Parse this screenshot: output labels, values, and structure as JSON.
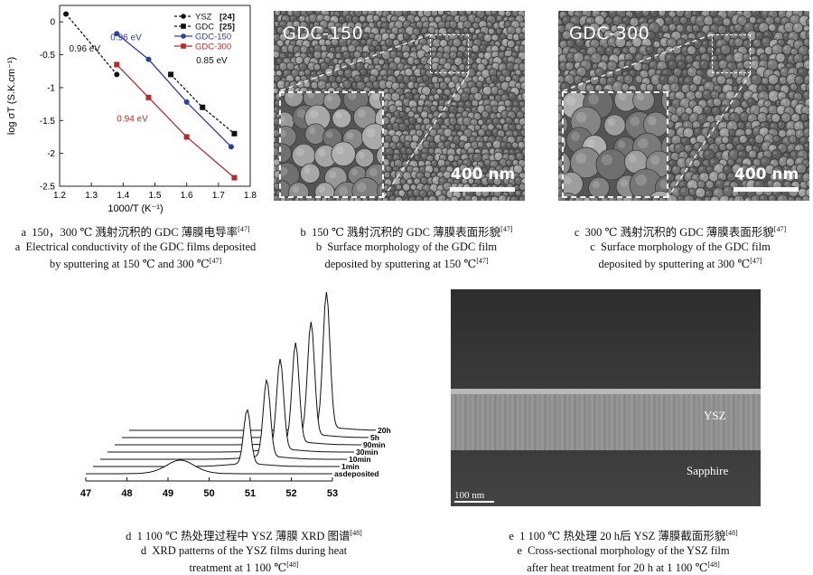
{
  "chart_data": {
    "type": "line",
    "title": "",
    "xlabel": "1000/T (K⁻¹)",
    "ylabel": "log σT (S.K.cm⁻¹)",
    "xlim": [
      1.2,
      1.8
    ],
    "ylim": [
      -2.5,
      0.25
    ],
    "xticks": [
      "1.2",
      "1.3",
      "1.4",
      "1.5",
      "1.6",
      "1.7",
      "1.8"
    ],
    "yticks": [
      "0",
      "-0.5",
      "-1",
      "-1.5",
      "-2",
      "-2.5"
    ],
    "legend_position": "top-right",
    "series": [
      {
        "name": "YSZ",
        "ref": "[24]",
        "color": "#111111",
        "marker": "circle",
        "dashed": true,
        "x": [
          1.22,
          1.38
        ],
        "y": [
          0.12,
          -0.8
        ]
      },
      {
        "name": "GDC",
        "ref": "[25]",
        "color": "#111111",
        "marker": "square",
        "dashed": true,
        "x": [
          1.55,
          1.65,
          1.75
        ],
        "y": [
          -0.8,
          -1.3,
          -1.7
        ]
      },
      {
        "name": "GDC-150",
        "color": "#2b3f9e",
        "marker": "circle",
        "dashed": false,
        "x": [
          1.38,
          1.48,
          1.6,
          1.74
        ],
        "y": [
          -0.18,
          -0.57,
          -1.22,
          -1.9
        ]
      },
      {
        "name": "GDC-300",
        "color": "#b22a2a",
        "marker": "square",
        "dashed": false,
        "x": [
          1.38,
          1.48,
          1.6,
          1.75
        ],
        "y": [
          -0.65,
          -1.15,
          -1.75,
          -2.37
        ]
      }
    ],
    "annotations": [
      {
        "text": "0.96 eV",
        "color": "#111111"
      },
      {
        "text": "0.96 eV",
        "color": "#2b3f9e"
      },
      {
        "text": "0.85 eV",
        "color": "#111111"
      },
      {
        "text": "0.94 eV",
        "color": "#b22a2a"
      }
    ]
  },
  "xrd": {
    "xticks": [
      "47",
      "48",
      "49",
      "50",
      "51",
      "52",
      "53"
    ],
    "traces": [
      "20h",
      "5h",
      "90min",
      "30min",
      "10min",
      "1min",
      "asdeposited"
    ]
  },
  "sem_b": {
    "label": "GDC-150",
    "scale": "400 nm"
  },
  "sem_c": {
    "label": "GDC-300",
    "scale": "400 nm"
  },
  "sem_e": {
    "layer_top": "YSZ",
    "layer_bottom": "Sapphire",
    "scale": "100 nm"
  },
  "captions": {
    "a": {
      "zh": "a 150，300 ℃ 溅射沉积的 GDC 薄膜电导率",
      "ref": "[47]",
      "en1": "a Electrical conductivity of the GDC films deposited",
      "en2": "by sputtering at 150 ℃ and 300 ℃",
      "en_ref": "[47]"
    },
    "b": {
      "zh": "b 150 ℃ 溅射沉积的 GDC 薄膜表面形貌",
      "ref": "[47]",
      "en1": "b Surface morphology of the GDC film",
      "en2": "deposited by sputtering at 150 ℃",
      "en_ref": "[47]"
    },
    "c": {
      "zh": "c 300 ℃ 溅射沉积的 GDC 薄膜表面形貌",
      "ref": "[47]",
      "en1": "c Surface morphology of the GDC film",
      "en2": "deposited by sputtering at 300 ℃",
      "en_ref": "[47]"
    },
    "d": {
      "zh": "d 1 100 ℃ 热处理过程中 YSZ 薄膜 XRD 图谱",
      "ref": "[48]",
      "en1": "d XRD patterns of the YSZ films during heat",
      "en2": "treatment at 1 100 ℃",
      "en_ref": "[48]"
    },
    "e": {
      "zh": "e 1 100 ℃ 热处理 20 h后 YSZ 薄膜截面形貌",
      "ref": "[48]",
      "en1": "e Cross-sectional morphology of the YSZ film",
      "en2": "after heat treatment for 20 h at 1 100 ℃",
      "en_ref": "[48]"
    }
  }
}
